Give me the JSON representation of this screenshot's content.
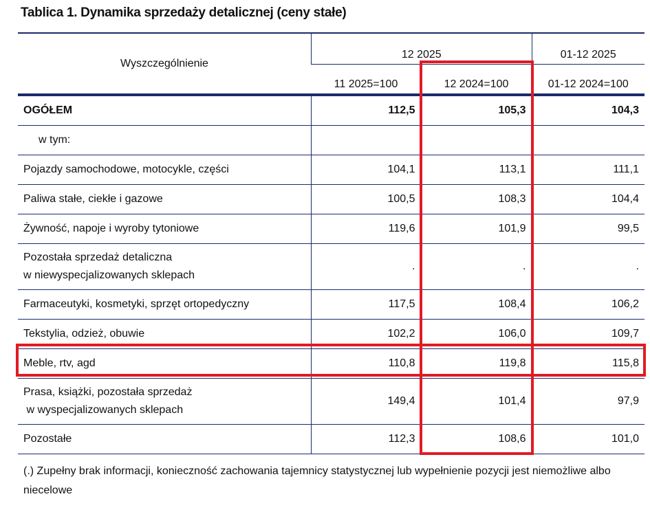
{
  "title": "Tablica 1. Dynamika sprzedaży detalicznej (ceny stałe)",
  "header": {
    "row_label": "Wyszczególnienie",
    "group1": "12 2025",
    "group2": "01-12 2025",
    "col1": "11 2025=100",
    "col2": "12 2024=100",
    "col3": "01-12 2024=100"
  },
  "rows": [
    {
      "label": "OGÓŁEM",
      "v1": "112,5",
      "v2": "105,3",
      "v3": "104,3"
    },
    {
      "label": "w tym:",
      "v1": "",
      "v2": "",
      "v3": ""
    },
    {
      "label": "Pojazdy samochodowe, motocykle, części",
      "v1": "104,1",
      "v2": "113,1",
      "v3": "111,1"
    },
    {
      "label": "Paliwa stałe, ciekłe i gazowe",
      "v1": "100,5",
      "v2": "108,3",
      "v3": "104,4"
    },
    {
      "label": "Żywność, napoje i wyroby tytoniowe",
      "v1": "119,6",
      "v2": "101,9",
      "v3": "99,5"
    },
    {
      "label": "Pozostała sprzedaż detaliczna",
      "label2": "w niewyspecjalizowanych sklepach",
      "v1": ".",
      "v2": ".",
      "v3": "."
    },
    {
      "label": "Farmaceutyki, kosmetyki, sprzęt ortopedyczny",
      "v1": "117,5",
      "v2": "108,4",
      "v3": "106,2"
    },
    {
      "label": "Tekstylia, odzież, obuwie",
      "v1": "102,2",
      "v2": "106,0",
      "v3": "109,7"
    },
    {
      "label": "Meble, rtv, agd",
      "v1": "110,8",
      "v2": "119,8",
      "v3": "115,8"
    },
    {
      "label": "Prasa, książki, pozostała sprzedaż",
      "label2": " w wyspecjalizowanych sklepach",
      "v1": "149,4",
      "v2": "101,4",
      "v3": "97,9"
    },
    {
      "label": "Pozostałe",
      "v1": "112,3",
      "v2": "108,6",
      "v3": "101,0"
    }
  ],
  "footnote": "(.) Zupełny brak informacji, konieczność zachowania tajemnicy statystycznej lub wypełnienie pozycji jest niemożliwe albo niecelowe",
  "highlight_color": "#e01b24"
}
